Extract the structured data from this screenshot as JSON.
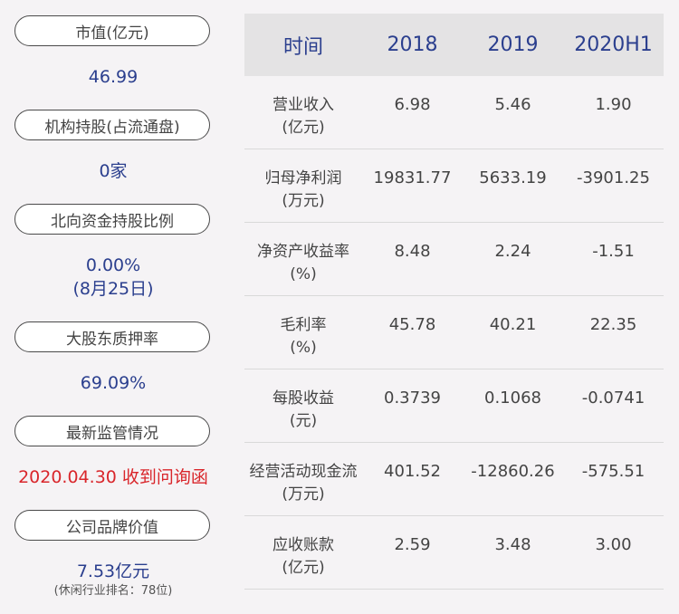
{
  "left": {
    "market_cap": {
      "label": "市值(亿元)",
      "value": "46.99"
    },
    "institutions": {
      "label": "机构持股(占流通盘)",
      "value": "0家"
    },
    "northbound": {
      "label": "北向资金持股比例",
      "value": "0.00%",
      "date": "(8月25日)"
    },
    "pledge": {
      "label": "大股东质押率",
      "value": "69.09%"
    },
    "regulatory": {
      "label": "最新监管情况",
      "value": "2020.04.30 收到问询函"
    },
    "brand": {
      "label": "公司品牌价值",
      "value": "7.53亿元",
      "rank": "(休闲行业排名：78位)"
    }
  },
  "table": {
    "headers": [
      "时间",
      "2018",
      "2019",
      "2020H1"
    ],
    "rows": [
      {
        "name": "营业收入",
        "unit": "(亿元)",
        "values": [
          "6.98",
          "5.46",
          "1.90"
        ]
      },
      {
        "name": "归母净利润",
        "unit": "(万元)",
        "values": [
          "19831.77",
          "5633.19",
          "-3901.25"
        ]
      },
      {
        "name": "净资产收益率",
        "unit": "(%)",
        "values": [
          "8.48",
          "2.24",
          "-1.51"
        ]
      },
      {
        "name": "毛利率",
        "unit": "(%)",
        "values": [
          "45.78",
          "40.21",
          "22.35"
        ]
      },
      {
        "name": "每股收益",
        "unit": "(元)",
        "values": [
          "0.3739",
          "0.1068",
          "-0.0741"
        ]
      },
      {
        "name": "经营活动现金流",
        "unit": "(万元)",
        "values": [
          "401.52",
          "-12860.26",
          "-575.51"
        ]
      },
      {
        "name": "应收账款",
        "unit": "(亿元)",
        "values": [
          "2.59",
          "3.48",
          "3.00"
        ]
      }
    ]
  },
  "colors": {
    "accent": "#2b3f8e",
    "alert": "#d9262b",
    "header_bg": "#e4e3e4",
    "page_bg": "#f5f3f5"
  }
}
